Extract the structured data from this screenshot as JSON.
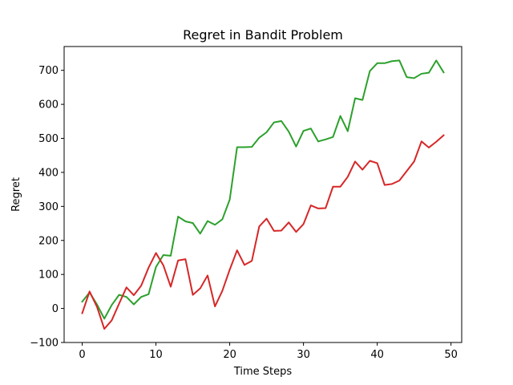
{
  "chart_data": {
    "type": "line",
    "title": "Regret in Bandit Problem",
    "xlabel": "Time Steps",
    "ylabel": "Regret",
    "xlim": [
      -2.45,
      51.45
    ],
    "ylim": [
      -100,
      770
    ],
    "xticks": [
      0,
      10,
      20,
      30,
      40,
      50
    ],
    "yticks": [
      -100,
      0,
      100,
      200,
      300,
      400,
      500,
      600,
      700
    ],
    "grid": false,
    "x": [
      0,
      1,
      2,
      3,
      4,
      5,
      6,
      7,
      8,
      9,
      10,
      11,
      12,
      13,
      14,
      15,
      16,
      17,
      18,
      19,
      20,
      21,
      22,
      23,
      24,
      25,
      26,
      27,
      28,
      29,
      30,
      31,
      32,
      33,
      34,
      35,
      36,
      37,
      38,
      39,
      40,
      41,
      42,
      43,
      44,
      45,
      46,
      47,
      48,
      49
    ],
    "series": [
      {
        "color": "#2ca02c",
        "values": [
          20,
          47,
          12,
          -30,
          10,
          40,
          34,
          12,
          34,
          42,
          122,
          157,
          155,
          270,
          256,
          251,
          220,
          257,
          246,
          262,
          320,
          474,
          474,
          475,
          502,
          518,
          547,
          551,
          520,
          476,
          522,
          529,
          491,
          497,
          504,
          566,
          521,
          618,
          613,
          698,
          721,
          721,
          727,
          729,
          680,
          677,
          690,
          693,
          729,
          694
        ]
      },
      {
        "color": "#d62728",
        "values": [
          -14,
          50,
          5,
          -60,
          -35,
          14,
          62,
          39,
          67,
          120,
          163,
          127,
          64,
          141,
          145,
          40,
          59,
          97,
          6,
          52,
          114,
          171,
          128,
          140,
          241,
          264,
          228,
          229,
          253,
          225,
          248,
          303,
          294,
          295,
          358,
          358,
          387,
          432,
          408,
          434,
          427,
          363,
          366,
          376,
          404,
          432,
          491,
          473,
          490,
          509
        ]
      }
    ]
  }
}
